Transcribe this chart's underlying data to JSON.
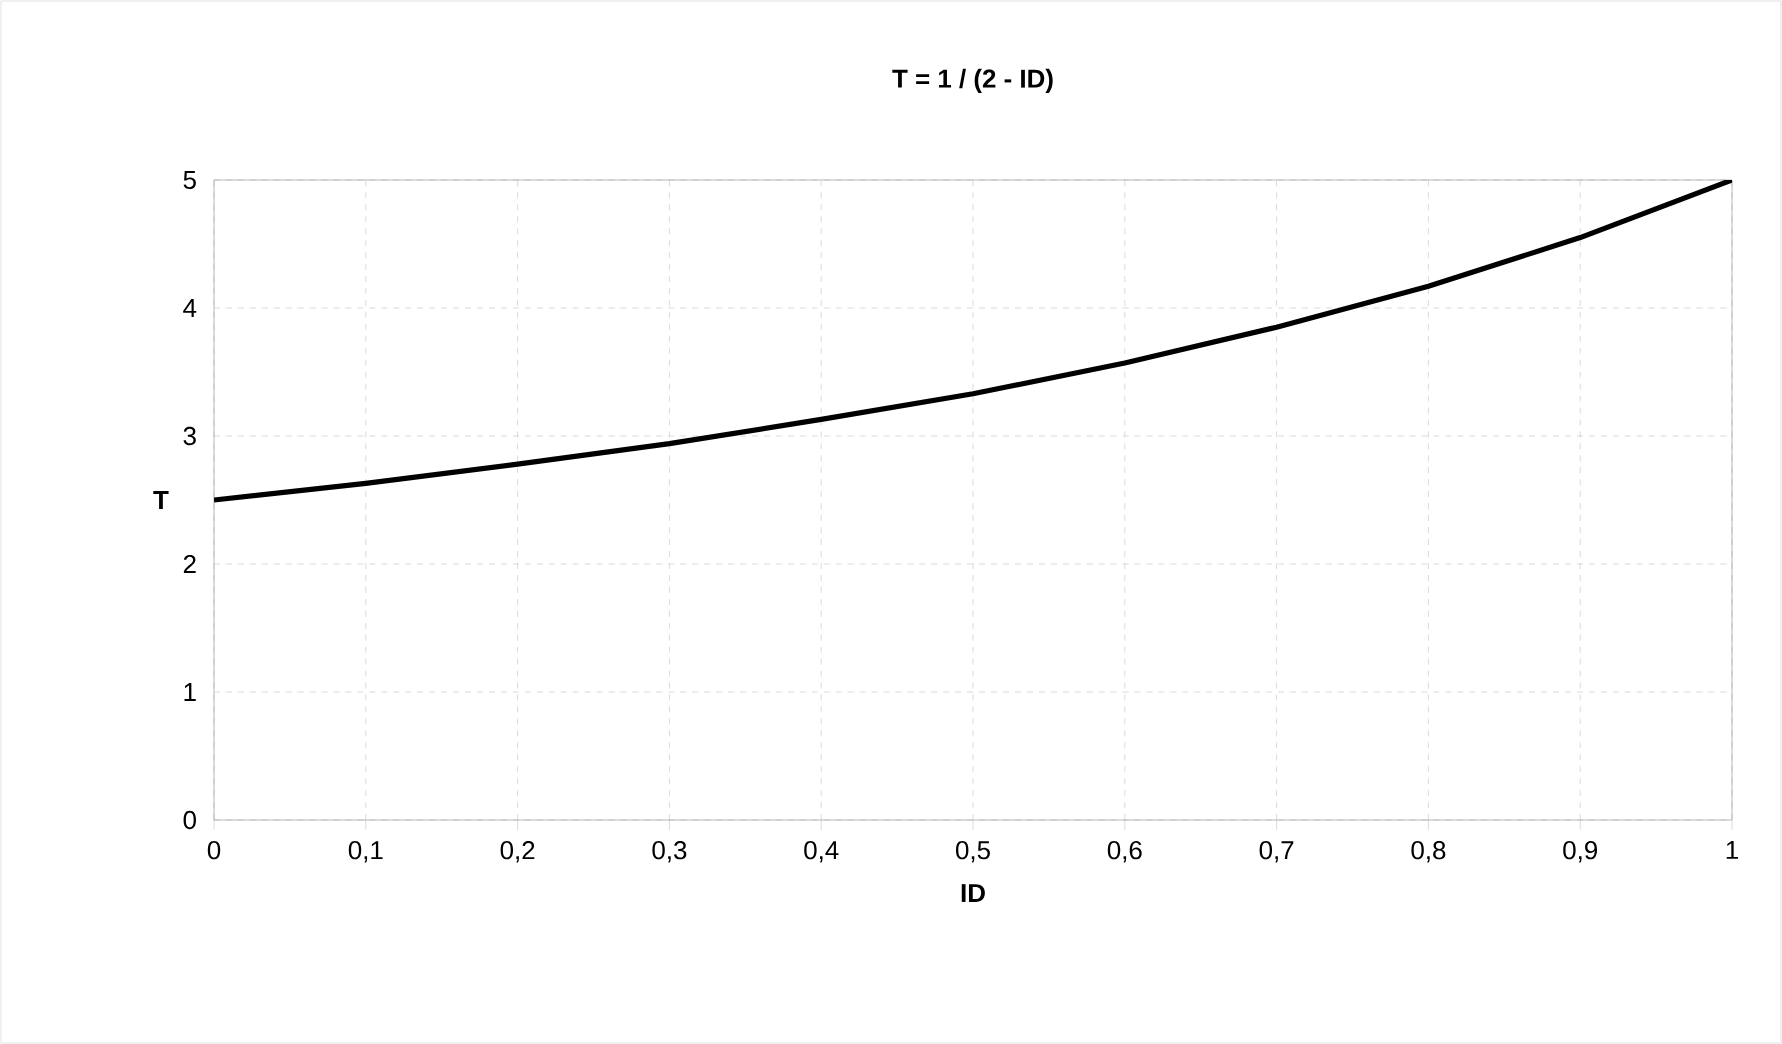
{
  "chart_data": {
    "type": "line",
    "title": "T = 1 / (2 - ID)",
    "xlabel": "ID",
    "ylabel": "T",
    "x": [
      0,
      0.1,
      0.2,
      0.3,
      0.4,
      0.5,
      0.6,
      0.7,
      0.8,
      0.9,
      1
    ],
    "series": [
      {
        "color": "#000000",
        "values": [
          2.5,
          2.63,
          2.78,
          2.94,
          3.13,
          3.33,
          3.57,
          3.85,
          4.17,
          4.55,
          5
        ]
      }
    ],
    "xlim": [
      0,
      1
    ],
    "ylim": [
      0,
      5
    ],
    "xticks": [
      0,
      {
        "value": 0.1,
        "label": "0,1"
      },
      {
        "value": 0.2,
        "label": "0,2"
      },
      {
        "value": 0.3,
        "label": "0,3"
      },
      {
        "value": 0.4,
        "label": "0,4"
      },
      {
        "value": 0.5,
        "label": "0,5"
      },
      {
        "value": 0.6,
        "label": "0,6"
      },
      {
        "value": 0.7,
        "label": "0,7"
      },
      {
        "value": 0.8,
        "label": "0,8"
      },
      {
        "value": 0.9,
        "label": "0,9"
      },
      1
    ],
    "yticks": [
      0,
      1,
      2,
      3,
      4,
      5
    ],
    "grid": true,
    "legend": false,
    "marker": "none",
    "line_style": "solid"
  }
}
